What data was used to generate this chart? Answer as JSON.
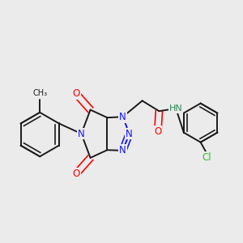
{
  "background_color": "#ebebeb",
  "bond_color": "#1a1a1a",
  "bond_width": 1.4,
  "atom_colors": {
    "N": "#1414ff",
    "O": "#ff0000",
    "Cl": "#33bb33",
    "H": "#2e8b57",
    "C": "#1a1a1a"
  },
  "font_size_atoms": 8.5,
  "title": ""
}
